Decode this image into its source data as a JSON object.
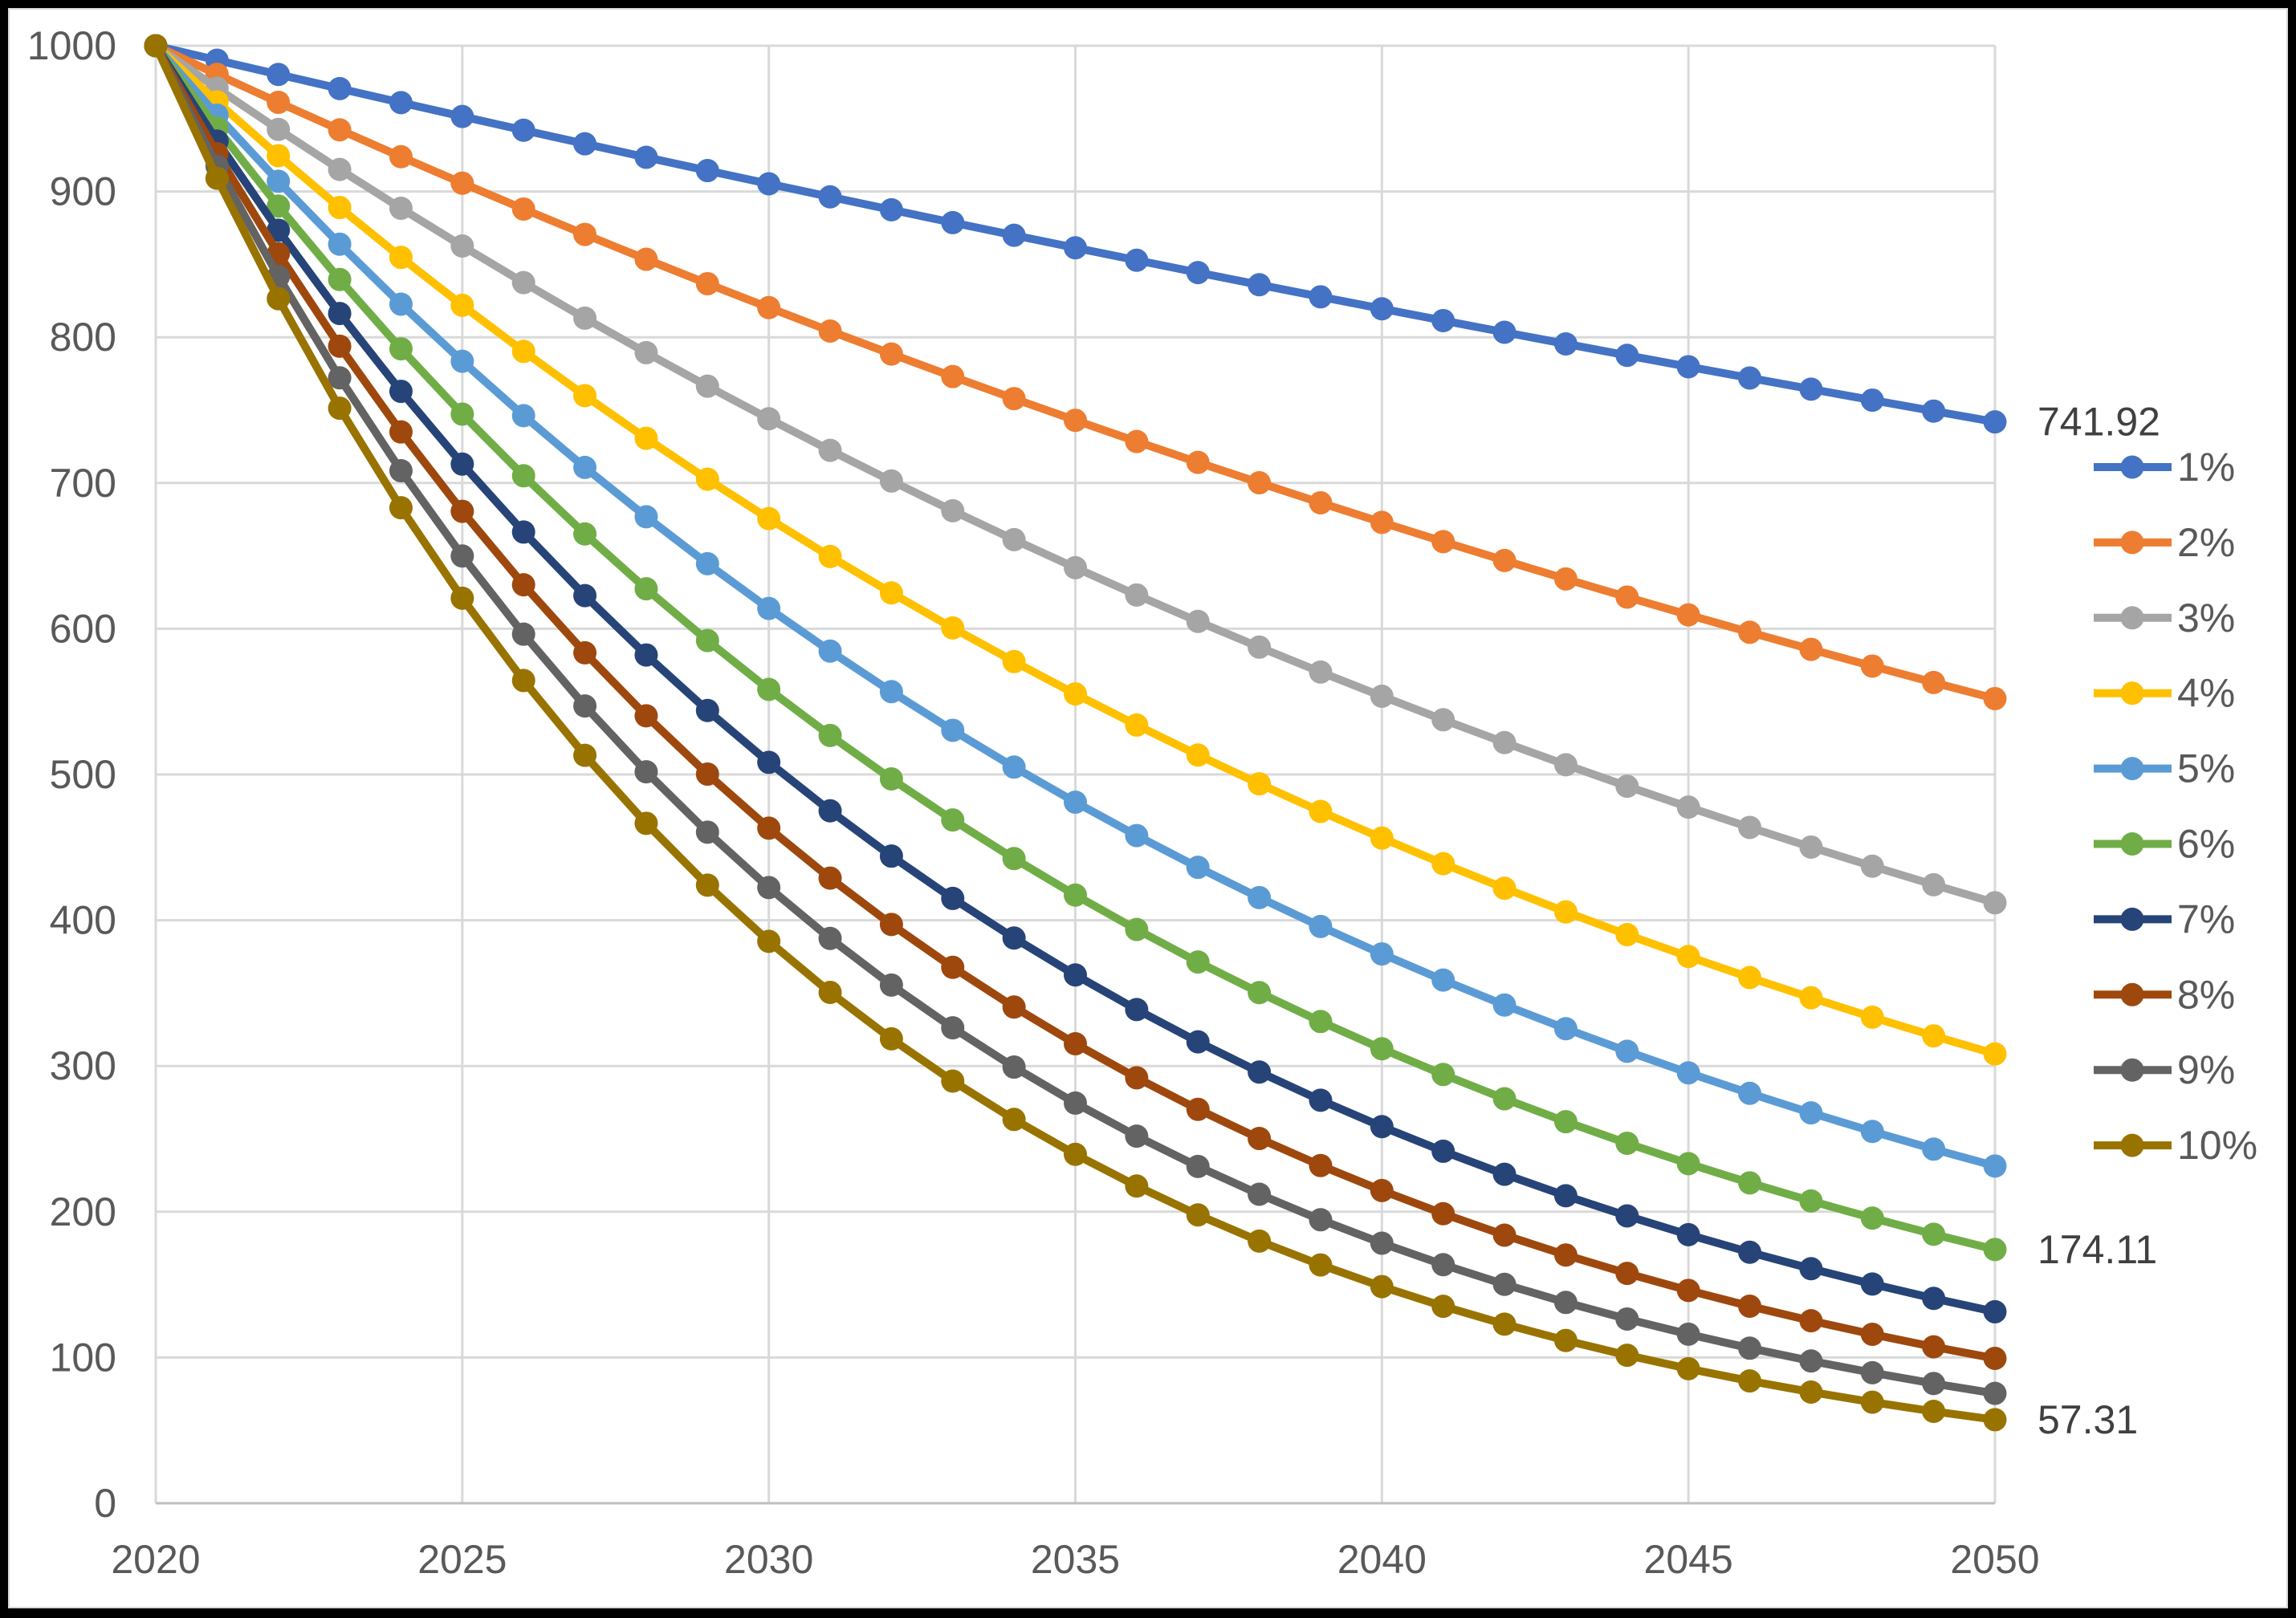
{
  "chart_data": {
    "type": "line",
    "title": "",
    "xlabel": "",
    "ylabel": "",
    "x": [
      2020,
      2021,
      2022,
      2023,
      2024,
      2025,
      2026,
      2027,
      2028,
      2029,
      2030,
      2031,
      2032,
      2033,
      2034,
      2035,
      2036,
      2037,
      2038,
      2039,
      2040,
      2041,
      2042,
      2043,
      2044,
      2045,
      2046,
      2047,
      2048,
      2049,
      2050
    ],
    "xticks": [
      2020,
      2025,
      2030,
      2035,
      2040,
      2045,
      2050
    ],
    "ylim": [
      0,
      1000
    ],
    "yticks": [
      0,
      100,
      200,
      300,
      400,
      500,
      600,
      700,
      800,
      900,
      1000
    ],
    "grid": true,
    "legend_position": "right",
    "marker": "circle",
    "series": [
      {
        "name": "1%",
        "color": "#4472C4",
        "values": [
          1000,
          990.1,
          980.3,
          970.59,
          960.98,
          951.47,
          942.05,
          932.72,
          923.48,
          914.34,
          905.29,
          896.32,
          887.45,
          878.66,
          869.96,
          861.35,
          852.82,
          844.38,
          836.02,
          827.74,
          819.54,
          811.43,
          803.4,
          795.45,
          787.57,
          779.77,
          772.05,
          764.4,
          756.84,
          749.34,
          741.92
        ]
      },
      {
        "name": "2%",
        "color": "#ED7D31",
        "values": [
          1000,
          980.39,
          961.17,
          942.32,
          923.85,
          905.73,
          887.97,
          870.56,
          853.49,
          836.76,
          820.35,
          804.26,
          788.49,
          773.03,
          757.88,
          743.01,
          728.45,
          714.16,
          700.16,
          686.43,
          672.97,
          659.78,
          646.84,
          634.16,
          621.72,
          609.53,
          597.58,
          585.86,
          574.37,
          563.11,
          552.07
        ]
      },
      {
        "name": "3%",
        "color": "#A5A5A5",
        "values": [
          1000,
          970.87,
          942.6,
          915.14,
          888.49,
          862.61,
          837.48,
          813.09,
          789.41,
          766.42,
          744.09,
          722.42,
          701.38,
          680.95,
          661.12,
          641.86,
          623.17,
          605.02,
          587.39,
          570.29,
          553.68,
          537.55,
          521.89,
          506.69,
          491.93,
          477.61,
          463.69,
          450.19,
          437.08,
          424.35,
          411.99
        ]
      },
      {
        "name": "4%",
        "color": "#FFC000",
        "values": [
          1000,
          961.54,
          924.56,
          889.0,
          854.8,
          821.93,
          790.31,
          759.92,
          730.69,
          702.59,
          675.56,
          649.58,
          624.6,
          600.57,
          577.48,
          555.26,
          533.91,
          513.37,
          493.63,
          474.64,
          456.39,
          438.83,
          421.96,
          405.73,
          390.12,
          375.12,
          360.69,
          346.82,
          333.48,
          320.65,
          308.32
        ]
      },
      {
        "name": "5%",
        "color": "#5B9BD5",
        "values": [
          1000,
          952.38,
          907.03,
          863.84,
          822.7,
          783.53,
          746.22,
          710.68,
          676.84,
          644.61,
          613.91,
          584.68,
          556.84,
          530.32,
          505.07,
          481.02,
          458.11,
          436.3,
          415.52,
          395.73,
          376.89,
          358.94,
          341.85,
          325.57,
          310.07,
          295.3,
          281.24,
          267.85,
          255.09,
          242.95,
          231.38
        ]
      },
      {
        "name": "6%",
        "color": "#70AD47",
        "values": [
          1000,
          943.4,
          890.0,
          839.62,
          792.09,
          747.26,
          704.96,
          665.06,
          627.41,
          591.9,
          558.39,
          526.79,
          496.97,
          468.84,
          442.3,
          417.27,
          393.65,
          371.36,
          350.34,
          330.51,
          311.8,
          294.16,
          277.51,
          261.8,
          246.98,
          233.0,
          219.81,
          207.37,
          195.63,
          184.56,
          174.11
        ]
      },
      {
        "name": "7%",
        "color": "#264478",
        "values": [
          1000,
          934.58,
          873.44,
          816.3,
          762.9,
          712.99,
          666.34,
          622.75,
          582.01,
          543.93,
          508.35,
          475.09,
          444.01,
          414.96,
          387.82,
          362.45,
          338.73,
          316.57,
          295.86,
          276.51,
          258.42,
          241.51,
          225.71,
          210.95,
          197.15,
          184.25,
          172.2,
          160.93,
          150.4,
          140.56,
          131.37
        ]
      },
      {
        "name": "8%",
        "color": "#9E480E",
        "values": [
          1000,
          925.93,
          857.34,
          793.83,
          735.03,
          680.58,
          630.17,
          583.49,
          540.27,
          500.25,
          463.19,
          428.88,
          397.11,
          367.7,
          340.46,
          315.24,
          291.89,
          270.27,
          250.25,
          231.71,
          214.55,
          198.66,
          183.94,
          170.32,
          157.7,
          146.02,
          135.2,
          125.19,
          115.91,
          107.33,
          99.38
        ]
      },
      {
        "name": "9%",
        "color": "#636363",
        "values": [
          1000,
          917.43,
          841.68,
          772.18,
          708.43,
          649.93,
          596.27,
          547.03,
          501.87,
          460.43,
          422.41,
          387.53,
          355.53,
          326.18,
          299.25,
          274.54,
          251.87,
          231.07,
          211.99,
          194.49,
          178.43,
          163.7,
          150.18,
          137.78,
          126.4,
          115.97,
          106.39,
          97.61,
          89.55,
          82.15,
          75.37
        ]
      },
      {
        "name": "10%",
        "color": "#997300",
        "values": [
          1000,
          909.09,
          826.45,
          751.31,
          683.01,
          620.92,
          564.47,
          513.16,
          466.51,
          424.1,
          385.54,
          350.49,
          318.63,
          289.66,
          263.33,
          239.39,
          217.63,
          197.84,
          179.86,
          163.51,
          148.64,
          135.13,
          122.85,
          111.68,
          101.53,
          92.3,
          83.91,
          76.28,
          69.34,
          63.04,
          57.31
        ]
      }
    ],
    "end_labels": [
      {
        "series": "1%",
        "text": "741.92"
      },
      {
        "series": "6%",
        "text": "174.11"
      },
      {
        "series": "10%",
        "text": "57.31"
      }
    ]
  },
  "colors": {
    "background": "#FFFFFF",
    "frame_border": "#000000",
    "canvas_border": "#D9D9D9",
    "gridline": "#D9D9D9",
    "value_axis_line": "#D9D9D9",
    "category_axis_line": "#BFBFBF",
    "axis_label": "#595959",
    "legend_label": "#595959",
    "data_label": "#404040"
  }
}
